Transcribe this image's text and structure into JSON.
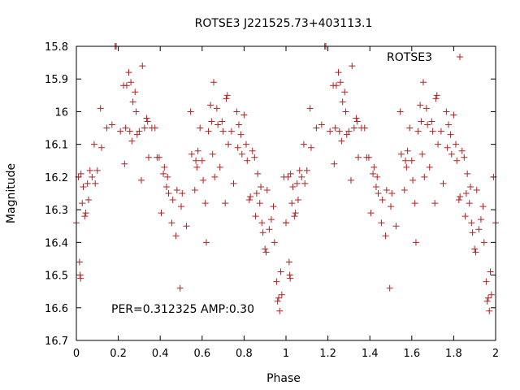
{
  "chart_data": {
    "type": "scatter",
    "title": "ROTSE3 J221525.73+403113.1",
    "xlabel": "Phase",
    "ylabel": "Magnitude",
    "xlim": [
      0,
      2
    ],
    "ylim": [
      16.7,
      15.8
    ],
    "y_inverted": true,
    "grid": false,
    "legend_position": "top-right",
    "annotation": "PER=0.312325 AMP:0.30",
    "x_ticks": [
      "0",
      "0.2",
      "0.4",
      "0.6",
      "0.8",
      "1",
      "1.2",
      "1.4",
      "1.6",
      "1.8",
      "2"
    ],
    "y_ticks": [
      "15.8",
      "15.9",
      "16",
      "16.1",
      "16.2",
      "16.3",
      "16.4",
      "16.5",
      "16.6",
      "16.7"
    ],
    "series": [
      {
        "name": "ROTSE3",
        "color": "#b22222",
        "marker": "plus",
        "points": [
          [
            0.0,
            16.34
          ],
          [
            0.01,
            16.2
          ],
          [
            0.015,
            16.46
          ],
          [
            0.018,
            16.5
          ],
          [
            0.02,
            16.51
          ],
          [
            0.022,
            16.19
          ],
          [
            0.028,
            16.28
          ],
          [
            0.033,
            16.23
          ],
          [
            0.04,
            16.32
          ],
          [
            0.045,
            16.31
          ],
          [
            0.053,
            16.22
          ],
          [
            0.058,
            16.27
          ],
          [
            0.065,
            16.18
          ],
          [
            0.075,
            16.2
          ],
          [
            0.085,
            16.1
          ],
          [
            0.09,
            16.22
          ],
          [
            0.1,
            16.18
          ],
          [
            0.115,
            15.99
          ],
          [
            0.12,
            16.11
          ],
          [
            0.145,
            16.05
          ],
          [
            0.17,
            16.04
          ],
          [
            0.185,
            15.8
          ],
          [
            0.19,
            15.8
          ],
          [
            0.21,
            16.06
          ],
          [
            0.225,
            15.92
          ],
          [
            0.23,
            16.16
          ],
          [
            0.235,
            16.05
          ],
          [
            0.24,
            15.92
          ],
          [
            0.25,
            15.88
          ],
          [
            0.255,
            16.06
          ],
          [
            0.26,
            15.91
          ],
          [
            0.265,
            16.09
          ],
          [
            0.27,
            15.97
          ],
          [
            0.28,
            15.94
          ],
          [
            0.285,
            16.0
          ],
          [
            0.29,
            16.07
          ],
          [
            0.3,
            16.06
          ],
          [
            0.31,
            16.21
          ],
          [
            0.315,
            15.86
          ],
          [
            0.325,
            16.05
          ],
          [
            0.335,
            16.02
          ],
          [
            0.34,
            16.03
          ],
          [
            0.345,
            16.14
          ],
          [
            0.36,
            16.05
          ],
          [
            0.375,
            16.05
          ],
          [
            0.385,
            16.14
          ],
          [
            0.395,
            16.14
          ],
          [
            0.405,
            16.31
          ],
          [
            0.415,
            16.19
          ],
          [
            0.42,
            16.17
          ],
          [
            0.43,
            16.23
          ],
          [
            0.435,
            16.2
          ],
          [
            0.44,
            16.25
          ],
          [
            0.455,
            16.34
          ],
          [
            0.46,
            16.27
          ],
          [
            0.475,
            16.38
          ],
          [
            0.48,
            16.24
          ],
          [
            0.495,
            16.54
          ],
          [
            0.5,
            16.29
          ],
          [
            0.505,
            16.25
          ],
          [
            0.525,
            16.35
          ],
          [
            0.545,
            16.0
          ],
          [
            0.55,
            16.13
          ],
          [
            0.565,
            16.24
          ],
          [
            0.57,
            16.15
          ],
          [
            0.575,
            16.17
          ],
          [
            0.58,
            16.12
          ],
          [
            0.59,
            16.05
          ],
          [
            0.6,
            16.15
          ],
          [
            0.605,
            16.21
          ],
          [
            0.615,
            16.28
          ],
          [
            0.62,
            16.4
          ],
          [
            0.63,
            16.06
          ],
          [
            0.64,
            15.98
          ],
          [
            0.645,
            16.03
          ],
          [
            0.65,
            16.13
          ],
          [
            0.655,
            15.91
          ],
          [
            0.66,
            16.2
          ],
          [
            0.67,
            15.99
          ],
          [
            0.675,
            16.04
          ],
          [
            0.685,
            16.17
          ],
          [
            0.695,
            16.03
          ],
          [
            0.7,
            16.06
          ],
          [
            0.71,
            16.28
          ],
          [
            0.715,
            15.96
          ],
          [
            0.72,
            15.95
          ],
          [
            0.725,
            16.1
          ],
          [
            0.74,
            16.06
          ],
          [
            0.75,
            16.22
          ],
          [
            0.765,
            16.0
          ],
          [
            0.77,
            16.11
          ],
          [
            0.775,
            16.04
          ],
          [
            0.785,
            16.07
          ],
          [
            0.79,
            16.13
          ],
          [
            0.8,
            16.01
          ],
          [
            0.81,
            16.1
          ],
          [
            0.815,
            16.15
          ],
          [
            0.825,
            16.27
          ],
          [
            0.83,
            16.26
          ],
          [
            0.84,
            16.12
          ],
          [
            0.85,
            16.14
          ],
          [
            0.855,
            16.32
          ],
          [
            0.86,
            16.25
          ],
          [
            0.865,
            16.19
          ],
          [
            0.875,
            16.28
          ],
          [
            0.88,
            16.23
          ],
          [
            0.885,
            16.34
          ],
          [
            0.89,
            16.37
          ],
          [
            0.9,
            16.42
          ],
          [
            0.905,
            16.43
          ],
          [
            0.91,
            16.24
          ],
          [
            0.92,
            16.36
          ],
          [
            0.93,
            16.33
          ],
          [
            0.94,
            16.29
          ],
          [
            0.945,
            16.4
          ],
          [
            0.955,
            16.52
          ],
          [
            0.96,
            16.58
          ],
          [
            0.965,
            16.57
          ],
          [
            0.97,
            16.61
          ],
          [
            0.975,
            16.49
          ],
          [
            0.98,
            16.56
          ],
          [
            0.99,
            16.2
          ],
          [
            1.0,
            16.34
          ]
        ]
      }
    ]
  }
}
